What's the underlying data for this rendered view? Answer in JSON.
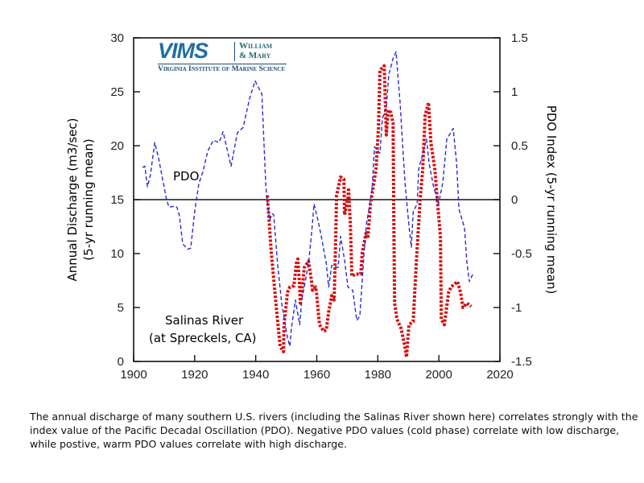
{
  "logo": {
    "mark": "VIMS",
    "partner_line1": "William",
    "partner_line2": "& Mary",
    "subtitle": "Virginia Institute of Marine Science"
  },
  "caption": "The annual discharge of many southern U.S. rivers (including the Salinas River shown here) correlates strongly with the index value of the Pacific Decadal Oscillation (PDO). Negative PDO values (cold phase) correlate with low discharge, while postive, warm PDO values correlate with high discharge.",
  "chart_data": {
    "type": "line",
    "title": "",
    "xlabel": "",
    "ylabel_left": [
      "Annual Discharge (m3/sec)",
      "(5-yr running mean)"
    ],
    "ylabel_right": "PDO Index (5-yr running mean)",
    "xlim": [
      1900,
      2020
    ],
    "ylim_left": [
      0,
      30
    ],
    "ylim_right": [
      -1.5,
      1.5
    ],
    "x_ticks": [
      1900,
      1920,
      1940,
      1960,
      1980,
      2000,
      2020
    ],
    "y_ticks_left": [
      0,
      5,
      10,
      15,
      20,
      25,
      30
    ],
    "y_ticks_right": [
      -1.5,
      -1,
      -0.5,
      0,
      0.5,
      1,
      1.5
    ],
    "y_tick_labels_right": [
      "-1.5",
      "-1",
      "-0.5",
      "0",
      "0.5",
      "1",
      "1.5"
    ],
    "grid": false,
    "reference_line": {
      "axis": "right",
      "value": 0
    },
    "annotations": [
      {
        "text": "PDO",
        "series": "PDO"
      },
      {
        "text": "Salinas River",
        "series": "Salinas River discharge"
      },
      {
        "text": "(at Spreckels, CA)",
        "series": "Salinas River discharge"
      }
    ],
    "series": [
      {
        "name": "PDO",
        "axis": "right",
        "color": "#2a2ad0",
        "style": "dashed",
        "x": [
          1902.9,
          1903.7,
          1904.5,
          1905.5,
          1906.9,
          1908.2,
          1909.5,
          1910.8,
          1911.6,
          1913.5,
          1914.2,
          1915.0,
          1916.1,
          1917.7,
          1918.7,
          1920.1,
          1921.4,
          1922.7,
          1924.3,
          1926.1,
          1928.0,
          1929.3,
          1931.9,
          1934.0,
          1935.9,
          1938.0,
          1939.8,
          1942.0,
          1943.3,
          1944.1,
          1944.6,
          1945.4,
          1945.9,
          1947.2,
          1948.5,
          1950.4,
          1951.2,
          1951.7,
          1953.0,
          1954.4,
          1955.1,
          1955.9,
          1957.3,
          1958.3,
          1959.1,
          1960.4,
          1961.7,
          1963.1,
          1963.9,
          1964.9,
          1967.0,
          1967.8,
          1969.1,
          1970.2,
          1971.8,
          1973.1,
          1974.1,
          1975.5,
          1976.3,
          1978.1,
          1978.9,
          1980.7,
          1981.5,
          1982.8,
          1983.6,
          1985.0,
          1986.0,
          1986.3,
          1987.3,
          1988.1,
          1988.9,
          1990.2,
          1991.0,
          1991.6,
          1992.9,
          1993.4,
          1995.3,
          1996.0,
          1996.8,
          1998.2,
          1999.9,
          2001.3,
          2002.6,
          2004.7,
          2005.8,
          2006.6,
          2008.4,
          2009.2,
          2010.0,
          2011.1
        ],
        "values": [
          0.3,
          0.31,
          0.12,
          0.23,
          0.53,
          0.38,
          0.19,
          0.0,
          -0.07,
          -0.06,
          -0.07,
          -0.15,
          -0.41,
          -0.46,
          -0.45,
          -0.09,
          0.15,
          0.26,
          0.45,
          0.55,
          0.53,
          0.63,
          0.31,
          0.62,
          0.67,
          0.94,
          1.1,
          0.98,
          0.13,
          -0.09,
          -0.19,
          -0.13,
          -0.14,
          -0.61,
          -0.96,
          -1.28,
          -1.36,
          -1.19,
          -0.93,
          -1.16,
          -0.93,
          -0.81,
          -0.59,
          -0.31,
          -0.04,
          -0.19,
          -0.37,
          -0.59,
          -0.81,
          -0.61,
          -0.63,
          -0.34,
          -0.56,
          -0.81,
          -0.84,
          -1.12,
          -1.08,
          -0.49,
          -0.22,
          0.08,
          0.49,
          0.43,
          0.75,
          0.86,
          1.16,
          1.31,
          1.37,
          1.25,
          0.9,
          0.53,
          0.16,
          -0.24,
          -0.44,
          -0.11,
          -0.04,
          0.28,
          0.49,
          0.56,
          0.34,
          0.13,
          -0.04,
          0.16,
          0.56,
          0.66,
          0.34,
          -0.09,
          -0.26,
          -0.59,
          -0.76,
          -0.69
        ]
      },
      {
        "name": "Salinas River discharge",
        "axis": "left",
        "color": "#d80f0f",
        "style": "dotted",
        "x": [
          1943.8,
          1945.1,
          1946.7,
          1948.0,
          1949.1,
          1949.3,
          1950.4,
          1951.2,
          1952.5,
          1953.3,
          1953.8,
          1954.4,
          1954.6,
          1955.1,
          1955.9,
          1957.3,
          1958.3,
          1958.6,
          1959.6,
          1959.9,
          1960.9,
          1962.3,
          1963.1,
          1963.9,
          1964.9,
          1965.7,
          1966.2,
          1966.5,
          1967.8,
          1968.9,
          1969.1,
          1970.2,
          1970.4,
          1971.0,
          1971.5,
          1972.8,
          1974.4,
          1974.9,
          1976.3,
          1976.8,
          1977.6,
          1979.4,
          1980.2,
          1980.7,
          1982.1,
          1982.8,
          1983.4,
          1984.2,
          1985.0,
          1985.2,
          1985.5,
          1986.3,
          1987.6,
          1988.7,
          1989.4,
          1990.2,
          1991.6,
          1992.6,
          1993.9,
          1994.7,
          1995.5,
          1996.6,
          1997.4,
          1998.7,
          1999.5,
          2000.5,
          2000.8,
          2001.8,
          2003.2,
          2004.0,
          2006.1,
          2007.1,
          2007.9,
          2009.2,
          2010.6
        ],
        "values": [
          15.4,
          10.1,
          5.1,
          1.4,
          0.9,
          3.4,
          6.4,
          6.9,
          7.0,
          9.1,
          9.5,
          6.9,
          5.4,
          6.4,
          8.7,
          9.3,
          7.4,
          6.6,
          6.9,
          6.4,
          3.4,
          2.8,
          2.9,
          4.6,
          6.1,
          5.7,
          11.3,
          15.4,
          17.1,
          16.9,
          13.6,
          15.1,
          16.1,
          12.8,
          7.9,
          8.1,
          8.1,
          10.1,
          12.1,
          11.6,
          14.6,
          17.8,
          21.6,
          27.0,
          27.4,
          21.0,
          23.3,
          23.1,
          22.1,
          14.1,
          5.4,
          3.9,
          3.1,
          1.6,
          0.4,
          3.4,
          3.7,
          9.1,
          15.1,
          17.8,
          22.8,
          24.0,
          20.3,
          17.8,
          14.9,
          11.6,
          3.9,
          3.4,
          6.4,
          6.9,
          7.4,
          6.4,
          5.0,
          5.4,
          5.1
        ]
      }
    ]
  }
}
